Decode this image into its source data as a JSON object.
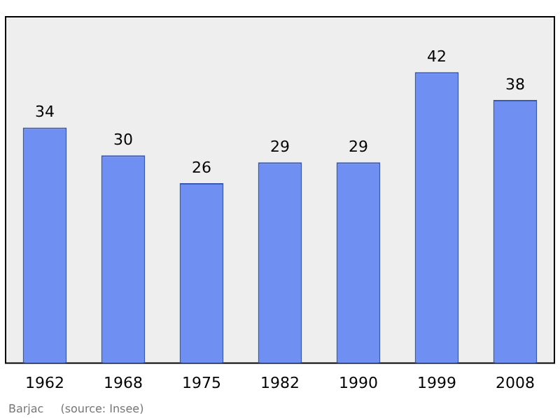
{
  "chart_data": {
    "type": "bar",
    "categories": [
      "1962",
      "1968",
      "1975",
      "1982",
      "1990",
      "1999",
      "2008"
    ],
    "values": [
      34,
      30,
      26,
      29,
      29,
      42,
      38
    ],
    "color": "#6f8ff3",
    "data_labels": true,
    "grid": false,
    "legend": false,
    "annotations": [
      "Barjac",
      "(source: Insee)"
    ]
  }
}
